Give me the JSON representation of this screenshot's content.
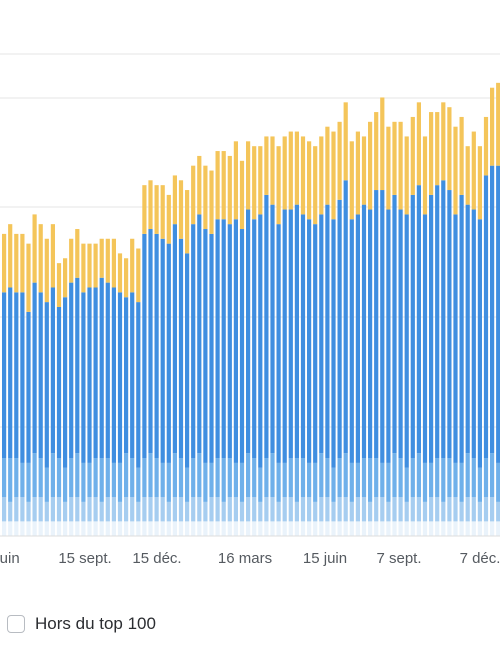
{
  "chart_data": {
    "type": "bar",
    "stacked": true,
    "grid": true,
    "ylim": [
      0,
      110
    ],
    "x_ticks": [
      "juin",
      "15 sept.",
      "15 déc.",
      "16 mars",
      "15 juin",
      "7 sept.",
      "7 déc."
    ],
    "series": [
      {
        "color": "#eaf3fb",
        "values": [
          3,
          3,
          3,
          3,
          3,
          3,
          3,
          3,
          3,
          3,
          3,
          3,
          3,
          3,
          3,
          3,
          3,
          3,
          3,
          3,
          3,
          3,
          3,
          3,
          3,
          3,
          3,
          3,
          3,
          3,
          3,
          3,
          3,
          3,
          3,
          3,
          3,
          3,
          3,
          3,
          3,
          3,
          3,
          3,
          3,
          3,
          3,
          3,
          3,
          3,
          3,
          3,
          3,
          3,
          3,
          3,
          3,
          3,
          3,
          3,
          3,
          3,
          3,
          3,
          3,
          3,
          3,
          3,
          3,
          3,
          3,
          3,
          3,
          3,
          3,
          3,
          3,
          3,
          3,
          3,
          3,
          3
        ]
      },
      {
        "color": "#a6cdf0",
        "values": [
          5,
          4,
          5,
          5,
          4,
          5,
          5,
          4,
          5,
          5,
          4,
          5,
          5,
          4,
          5,
          5,
          4,
          5,
          5,
          4,
          5,
          5,
          4,
          5,
          5,
          5,
          5,
          4,
          5,
          5,
          4,
          5,
          5,
          4,
          5,
          5,
          4,
          5,
          5,
          4,
          5,
          5,
          4,
          5,
          5,
          4,
          5,
          5,
          4,
          5,
          5,
          4,
          5,
          5,
          4,
          5,
          5,
          4,
          5,
          5,
          4,
          5,
          5,
          4,
          5,
          5,
          4,
          5,
          5,
          4,
          5,
          5,
          4,
          5,
          5,
          4,
          5,
          5,
          4,
          5,
          5,
          4
        ]
      },
      {
        "color": "#6fb0ea",
        "values": [
          8,
          9,
          8,
          7,
          8,
          9,
          8,
          7,
          9,
          8,
          7,
          8,
          9,
          8,
          7,
          8,
          9,
          8,
          7,
          8,
          9,
          8,
          7,
          8,
          9,
          8,
          7,
          8,
          9,
          8,
          7,
          8,
          9,
          8,
          7,
          8,
          9,
          8,
          7,
          8,
          9,
          8,
          7,
          8,
          9,
          8,
          7,
          8,
          9,
          8,
          7,
          8,
          9,
          8,
          7,
          8,
          9,
          8,
          7,
          8,
          9,
          8,
          7,
          8,
          9,
          8,
          7,
          8,
          9,
          8,
          7,
          8,
          9,
          8,
          7,
          8,
          9,
          8,
          7,
          8,
          9,
          8
        ]
      },
      {
        "color": "#3f8ee0",
        "values": [
          34,
          35,
          34,
          35,
          31,
          35,
          34,
          34,
          34,
          31,
          35,
          36,
          36,
          35,
          36,
          35,
          37,
          36,
          36,
          35,
          32,
          34,
          34,
          46,
          46,
          46,
          46,
          45,
          47,
          45,
          44,
          48,
          49,
          48,
          47,
          49,
          49,
          48,
          50,
          48,
          50,
          49,
          52,
          54,
          51,
          49,
          52,
          51,
          52,
          50,
          50,
          49,
          49,
          52,
          51,
          53,
          56,
          50,
          51,
          52,
          51,
          55,
          56,
          52,
          53,
          51,
          52,
          54,
          55,
          51,
          55,
          56,
          57,
          55,
          51,
          55,
          51,
          51,
          51,
          58,
          59,
          61
        ]
      },
      {
        "color": "#f4c55a",
        "values": [
          12,
          13,
          12,
          12,
          14,
          14,
          14,
          13,
          13,
          9,
          8,
          9,
          10,
          10,
          9,
          9,
          8,
          9,
          10,
          8,
          8,
          11,
          11,
          10,
          10,
          10,
          11,
          10,
          10,
          12,
          13,
          12,
          12,
          13,
          13,
          14,
          14,
          14,
          16,
          14,
          14,
          15,
          14,
          12,
          14,
          16,
          15,
          16,
          15,
          16,
          16,
          16,
          16,
          16,
          18,
          16,
          16,
          16,
          17,
          14,
          18,
          16,
          19,
          17,
          15,
          18,
          16,
          16,
          17,
          16,
          17,
          15,
          16,
          17,
          18,
          16,
          12,
          16,
          15,
          12,
          16,
          17
        ]
      }
    ]
  },
  "legend": {
    "label": "Hors du top 100"
  }
}
